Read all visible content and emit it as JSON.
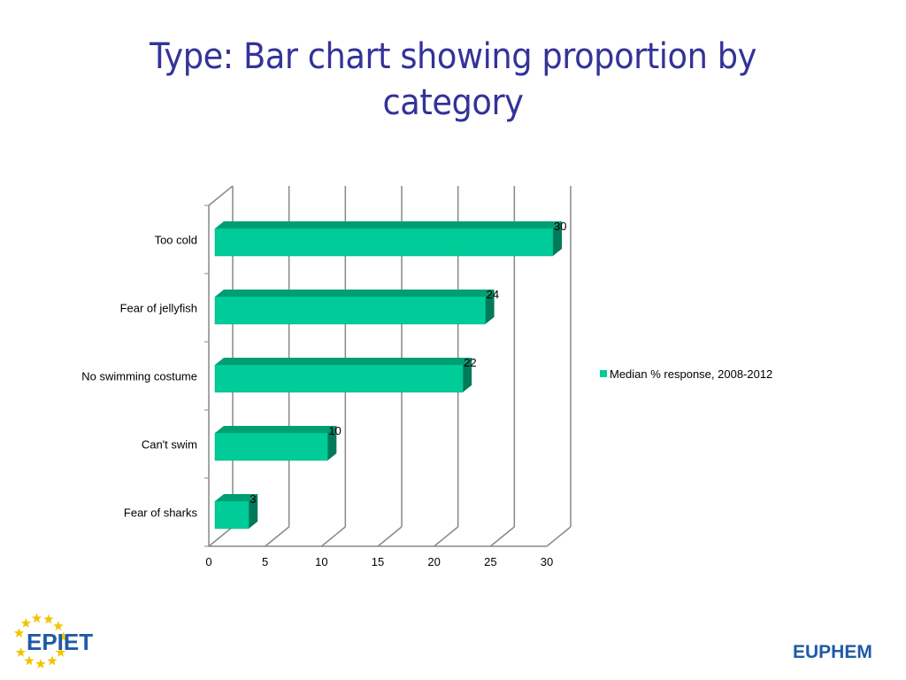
{
  "slide": {
    "title": "Type: Bar chart showing proportion by\ncategory"
  },
  "logos": {
    "left": "EPIET",
    "right": "EUPHEM"
  },
  "colors": {
    "title": "#333399",
    "bar_front": "#00CC99",
    "bar_top": "#009E73",
    "bar_side": "#007A59",
    "grid": "#888888",
    "logo_blue": "#1F5AA6",
    "logo_star": "#F2C500"
  },
  "chart_data": {
    "type": "bar",
    "orientation": "horizontal",
    "style": "3d",
    "categories": [
      "Too cold",
      "Fear of jellyfish",
      "No swimming costume",
      "Can't swim",
      "Fear of sharks"
    ],
    "series": [
      {
        "name": "Median % response, 2008-2012",
        "values": [
          30,
          24,
          22,
          10,
          3
        ]
      }
    ],
    "xlim": [
      0,
      30
    ],
    "xticks": [
      0,
      5,
      10,
      15,
      20,
      25,
      30
    ],
    "grid": true,
    "legend_position": "right",
    "data_labels": true
  }
}
